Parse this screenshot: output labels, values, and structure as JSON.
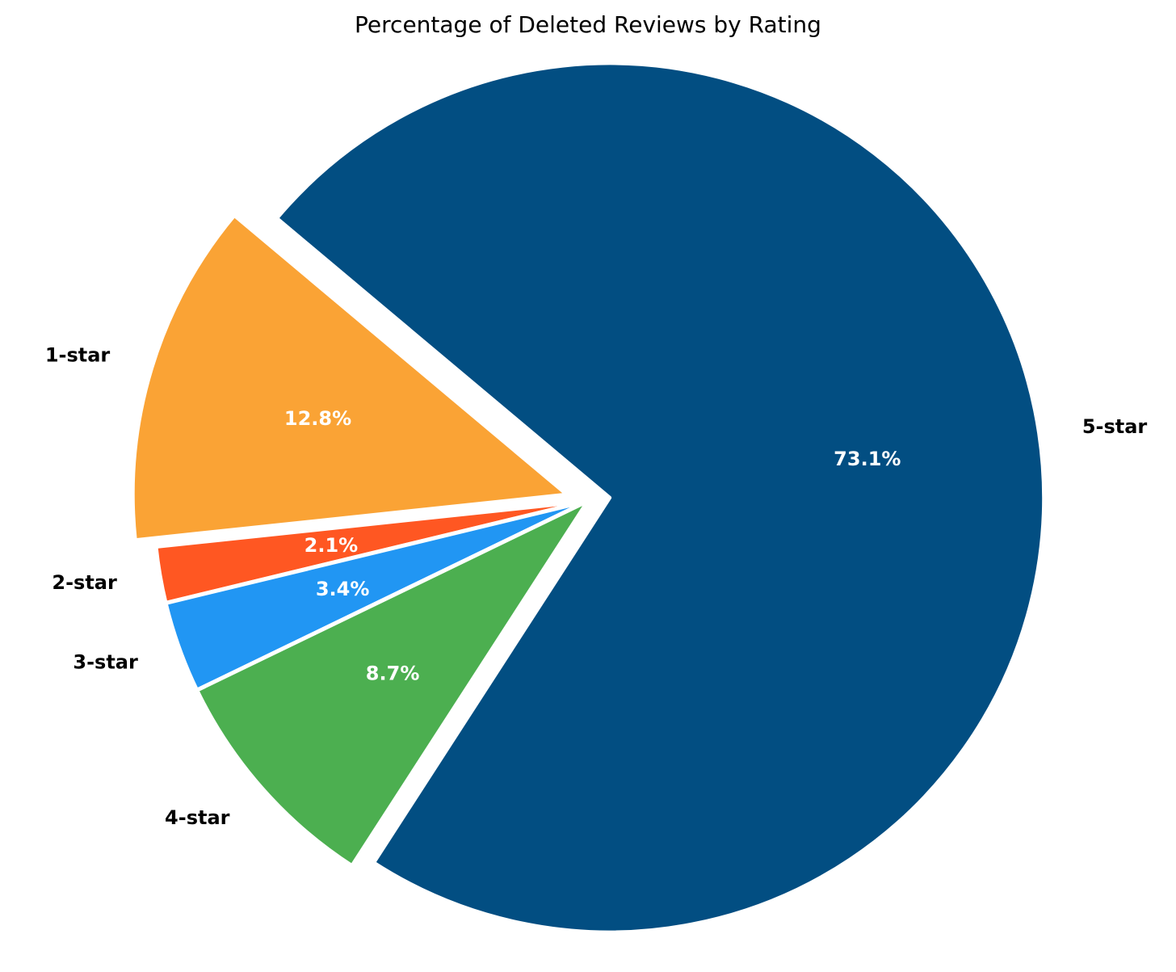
{
  "chart_data": {
    "type": "pie",
    "title": "Percentage of Deleted Reviews by Rating",
    "categories": [
      "1-star",
      "2-star",
      "3-star",
      "4-star",
      "5-star"
    ],
    "values": [
      12.8,
      2.1,
      3.4,
      8.7,
      73.1
    ],
    "value_labels": [
      "12.8%",
      "2.1%",
      "3.4%",
      "8.7%",
      "73.1%"
    ],
    "colors": [
      "#FAA335",
      "#FF5722",
      "#2196F3",
      "#4CAF50",
      "#024E82"
    ],
    "exploded": [
      "1-star",
      "5-star"
    ],
    "start_angle_deg": 140,
    "direction": "counterclockwise",
    "legend": "none"
  }
}
